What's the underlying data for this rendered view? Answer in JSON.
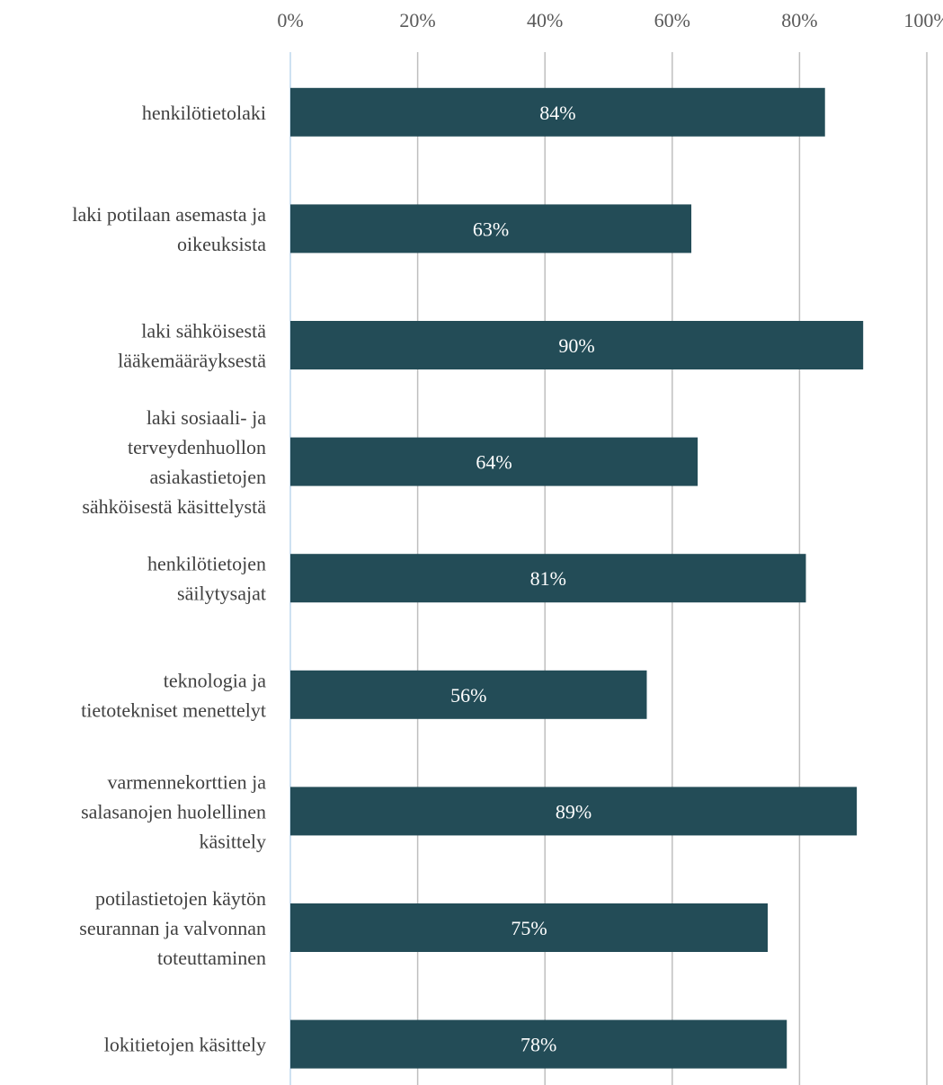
{
  "chart_data": {
    "type": "bar",
    "orientation": "horizontal",
    "categories": [
      [
        "henkilötietolaki"
      ],
      [
        "laki potilaan asemasta ja",
        "oikeuksista"
      ],
      [
        "laki sähköisestä",
        "lääkemääräyksestä"
      ],
      [
        "laki sosiaali- ja",
        "terveydenhuollon",
        "asiakastietojen",
        "sähköisestä käsittelystä"
      ],
      [
        "henkilötietojen",
        "säilytysajat"
      ],
      [
        "teknologia ja",
        "tietotekniset menettelyt"
      ],
      [
        "varmennekorttien ja",
        "salasanojen huolellinen",
        "käsittely"
      ],
      [
        "potilastietojen käytön",
        "seurannan ja valvonnan",
        "toteuttaminen"
      ],
      [
        "lokitietojen käsittely"
      ]
    ],
    "values": [
      84,
      63,
      90,
      64,
      81,
      56,
      89,
      75,
      78
    ],
    "data_labels": [
      "84%",
      "63%",
      "90%",
      "64%",
      "81%",
      "56%",
      "89%",
      "75%",
      "78%"
    ],
    "x_ticks": [
      "0%",
      "20%",
      "40%",
      "60%",
      "80%",
      "100%"
    ],
    "xlim": [
      0,
      100
    ],
    "x_axis_position": "top",
    "grid": true,
    "legend": "none",
    "colors": {
      "bar": "#234c57",
      "grid": "#bfbfbf",
      "axis": "#bdd7ee"
    }
  }
}
